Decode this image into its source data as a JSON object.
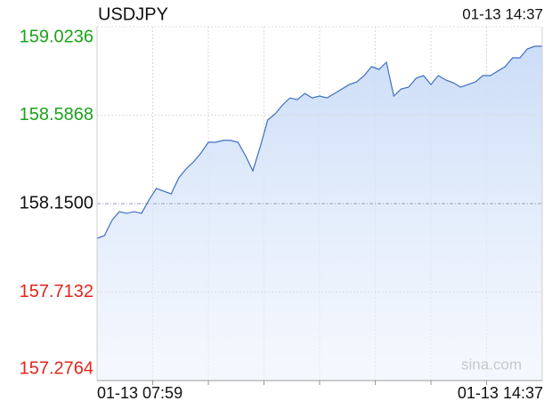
{
  "chart_data": {
    "type": "line",
    "title": "USDJPY",
    "timestamp": "01-13 14:37",
    "watermark": "sina.com",
    "reference_value": 158.15,
    "up_color": "#1aa31a",
    "down_color": "#e1261c",
    "color": "#3d6fc2",
    "ylim": [
      157.2764,
      159.0236
    ],
    "yticks": [
      157.2764,
      157.7132,
      {
        "value": 158.15,
        "label": "158.1500"
      },
      158.5868,
      159.0236
    ],
    "grid": true,
    "categories": [
      "01-13 07:59",
      null,
      null,
      null,
      null,
      null,
      null,
      null,
      null,
      null,
      null,
      null,
      null,
      null,
      null,
      null,
      null,
      null,
      null,
      null,
      null,
      null,
      null,
      null,
      null,
      null,
      null,
      null,
      null,
      null,
      null,
      null,
      null,
      null,
      null,
      null,
      null,
      null,
      null,
      null,
      null,
      null,
      null,
      null,
      null,
      null,
      null,
      null,
      null,
      null,
      null,
      null,
      null,
      null,
      null,
      null,
      null,
      null,
      null,
      null,
      "01-13 14:37"
    ],
    "values": [
      157.979,
      157.992,
      158.067,
      158.11,
      158.102,
      158.11,
      158.102,
      158.168,
      158.225,
      158.211,
      158.198,
      158.277,
      158.321,
      158.356,
      158.4,
      158.453,
      158.453,
      158.462,
      158.462,
      158.453,
      158.387,
      158.312,
      158.431,
      158.563,
      158.593,
      158.637,
      158.672,
      158.663,
      158.694,
      158.672,
      158.681,
      158.672,
      158.694,
      158.716,
      158.738,
      158.751,
      158.782,
      158.826,
      158.813,
      158.848,
      158.681,
      158.716,
      158.725,
      158.769,
      158.782,
      158.738,
      158.782,
      158.76,
      158.747,
      158.725,
      158.738,
      158.751,
      158.782,
      158.782,
      158.804,
      158.826,
      158.87,
      158.87,
      158.914,
      158.927,
      158.927
    ]
  }
}
